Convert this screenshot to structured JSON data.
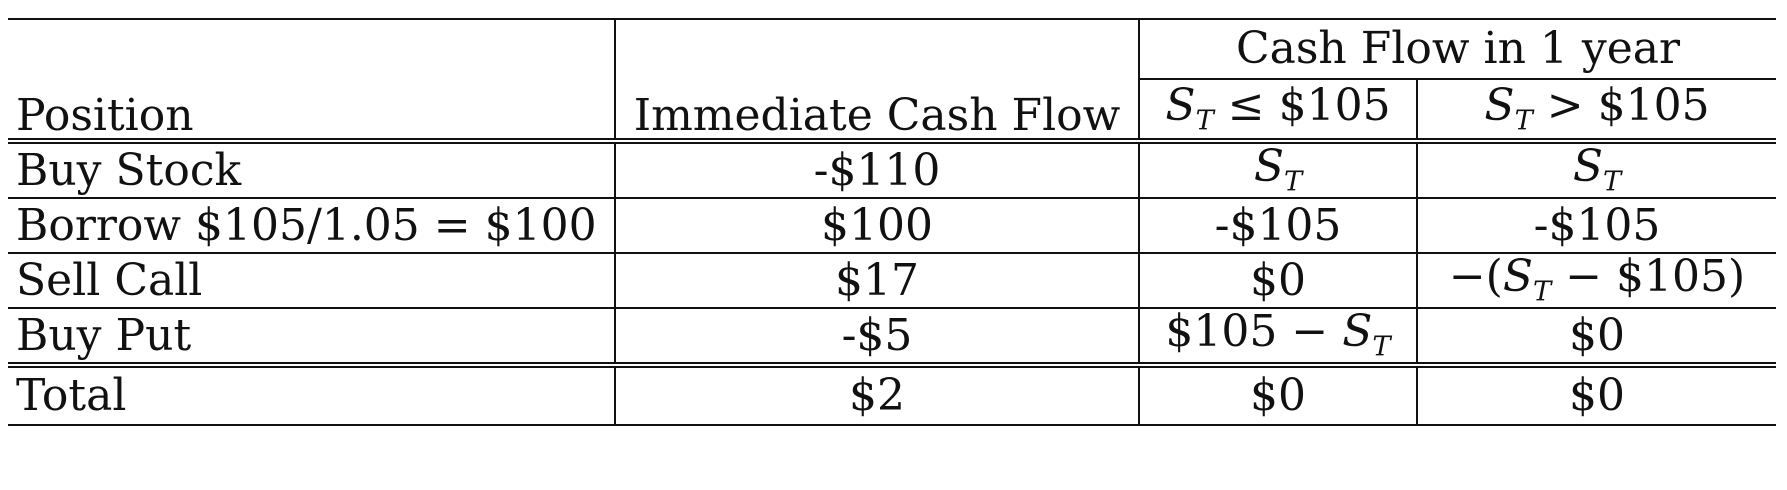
{
  "table": {
    "group_header": "Cash Flow in 1 year",
    "headers": {
      "position": "Position",
      "immediate": "Immediate Cash Flow",
      "le_105": "S_T ≤ $105",
      "gt_105": "S_T > $105"
    },
    "rows": [
      {
        "position": "Buy Stock",
        "immediate": "-$110",
        "le_105": "S_T",
        "gt_105": "S_T"
      },
      {
        "position": "Borrow $105/1.05 = $100",
        "immediate": "$100",
        "le_105": "-$105",
        "gt_105": "-$105"
      },
      {
        "position": "Sell Call",
        "immediate": "$17",
        "le_105": "$0",
        "gt_105": "−(S_T − $105)"
      },
      {
        "position": "Buy Put",
        "immediate": "-$5",
        "le_105": "$105 − S_T",
        "gt_105": "$0"
      }
    ],
    "total": {
      "position": "Total",
      "immediate": "$2",
      "le_105": "$0",
      "gt_105": "$0"
    }
  }
}
